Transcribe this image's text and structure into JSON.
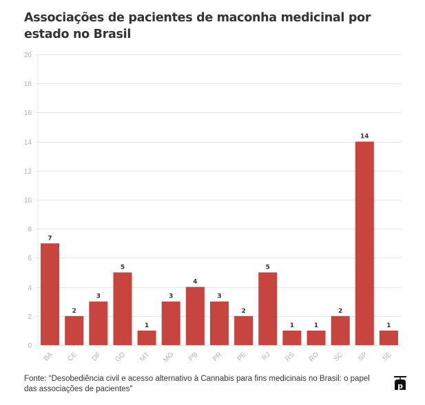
{
  "title": "Associações de pacientes de maconha medicinal por estado no Brasil",
  "footer": {
    "source": "Fonte: “Desobediência civil e acesso alternativo à Cannabis para fins medicinais no Brasil: o papel das associações de pacientes\"",
    "logo_icon": "publisher-logo-icon"
  },
  "colors": {
    "bar": "#c8443f",
    "grid": "#e6e6e6",
    "tick_label": "#b3b3b3",
    "data_label": "#333333",
    "title": "#333333"
  },
  "chart_data": {
    "type": "bar",
    "title": "Associações de pacientes de maconha medicinal por estado no Brasil",
    "xlabel": "",
    "ylabel": "",
    "categories": [
      "BA",
      "CE",
      "DF",
      "GO",
      "MT",
      "MG",
      "PB",
      "PR",
      "PE",
      "RJ",
      "RS",
      "RO",
      "SC",
      "SP",
      "SE"
    ],
    "values": [
      7,
      2,
      3,
      5,
      1,
      3,
      4,
      3,
      2,
      5,
      1,
      1,
      2,
      14,
      1
    ],
    "ylim": [
      0,
      20
    ],
    "yticks": [
      0,
      2,
      4,
      6,
      8,
      10,
      12,
      14,
      16,
      18,
      20
    ],
    "grid": true,
    "legend": "none",
    "data_labels": true,
    "x_tick_rotation_deg": -45
  }
}
